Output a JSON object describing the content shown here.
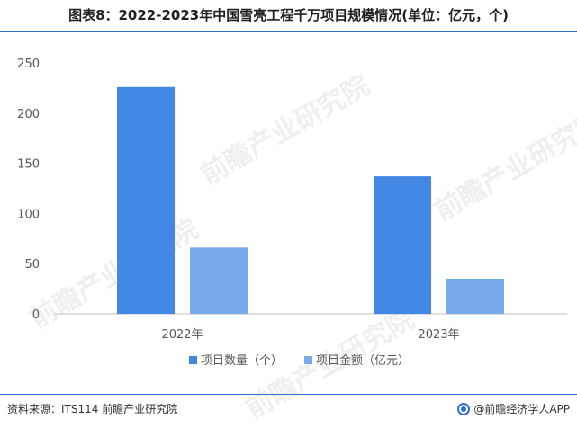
{
  "title": "图表8：2022-2023年中国雪亮工程千万项目规模情况(单位：亿元，个)",
  "source": "资料来源：ITS114 前瞻产业研究院",
  "brand": "@前瞻经济学人APP",
  "watermark": "前瞻产业研究院",
  "colors": {
    "series1": "#4287e4",
    "series2": "#78aaec",
    "rule": "#2a6fd6"
  },
  "chart_data": {
    "type": "bar",
    "categories": [
      "2022年",
      "2023年"
    ],
    "series": [
      {
        "name": "项目数量（个）",
        "values": [
          226,
          137
        ]
      },
      {
        "name": "项目金额（亿元）",
        "values": [
          66,
          35
        ]
      }
    ],
    "yticks": [
      0,
      50,
      100,
      150,
      200,
      250
    ],
    "ylim": [
      0,
      250
    ],
    "grid": false,
    "legend": "bottom"
  }
}
